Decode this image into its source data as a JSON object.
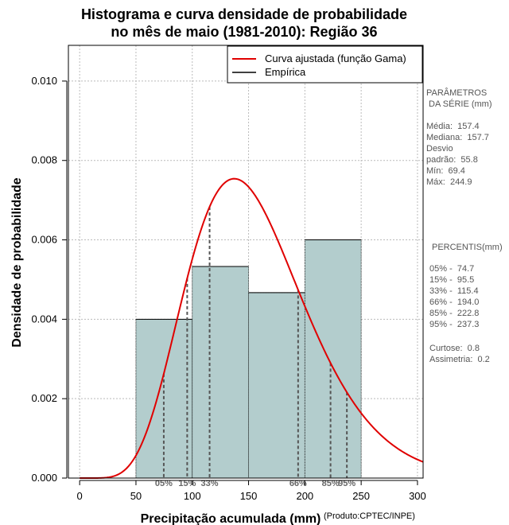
{
  "chart_data": {
    "type": "bar",
    "title_line1": "Histograma e curva densidade de probabilidade",
    "title_line2": "no mês de maio (1981-2010): Região 36",
    "xlabel": "Precipitação acumulada (mm)",
    "ylabel": "Densidade de probabilidade",
    "credit": "(Produto:CPTEC/INPE)",
    "xlim": [
      -10,
      305
    ],
    "ylim": [
      0,
      0.0109
    ],
    "x_ticks": [
      0,
      50,
      100,
      150,
      200,
      250,
      300
    ],
    "x_tick_labels": [
      "0",
      "50",
      "100",
      "150",
      "200",
      "250",
      "300"
    ],
    "y_ticks": [
      0,
      0.002,
      0.004,
      0.006,
      0.008,
      0.01
    ],
    "y_tick_labels": [
      "0.000",
      "0.002",
      "0.004",
      "0.006",
      "0.008",
      "0.010"
    ],
    "histogram": [
      {
        "from": 50,
        "to": 100,
        "density": 0.004
      },
      {
        "from": 100,
        "to": 150,
        "density": 0.00533
      },
      {
        "from": 150,
        "to": 200,
        "density": 0.00467
      },
      {
        "from": 200,
        "to": 250,
        "density": 0.006
      }
    ],
    "fitted_curve": {
      "name": "Curva ajustada (função Gama)",
      "color": "#e00000",
      "distribution": "gamma",
      "shape": 7.9,
      "scale": 19.9,
      "x_from": 0,
      "x_to": 305
    },
    "percentiles": [
      {
        "label": "05%",
        "value": 74.7
      },
      {
        "label": "15%",
        "value": 95.5
      },
      {
        "label": "33%",
        "value": 115.4
      },
      {
        "label": "66%",
        "value": 194.0
      },
      {
        "label": "85%",
        "value": 222.8
      },
      {
        "label": "95%",
        "value": 237.3
      }
    ],
    "legend": [
      {
        "label": "Curva ajustada (função Gama)",
        "color": "#e00000"
      },
      {
        "label": "Empírica",
        "color": "#000000"
      }
    ],
    "legend_position": "top-right",
    "grid": true,
    "bar_color": "#b3cdcd"
  },
  "side_panel": {
    "params_lines": [
      "PARÂMETROS",
      " DA SÉRIE (mm)"
    ],
    "stats_lines": [
      "Média:  157.4",
      "Mediana:  157.7",
      "Desvio",
      "padrão:  55.8",
      "Mín:  69.4",
      "Máx:  244.9"
    ],
    "percentis_title": "PERCENTIS(mm)",
    "percentis_lines": [
      "05% -  74.7",
      "15% -  95.5",
      "33% -  115.4",
      "66% -  194.0",
      "85% -  222.8",
      "95% -  237.3"
    ],
    "shape_lines": [
      "Curtose:  0.8",
      "Assimetria:  0.2"
    ]
  }
}
